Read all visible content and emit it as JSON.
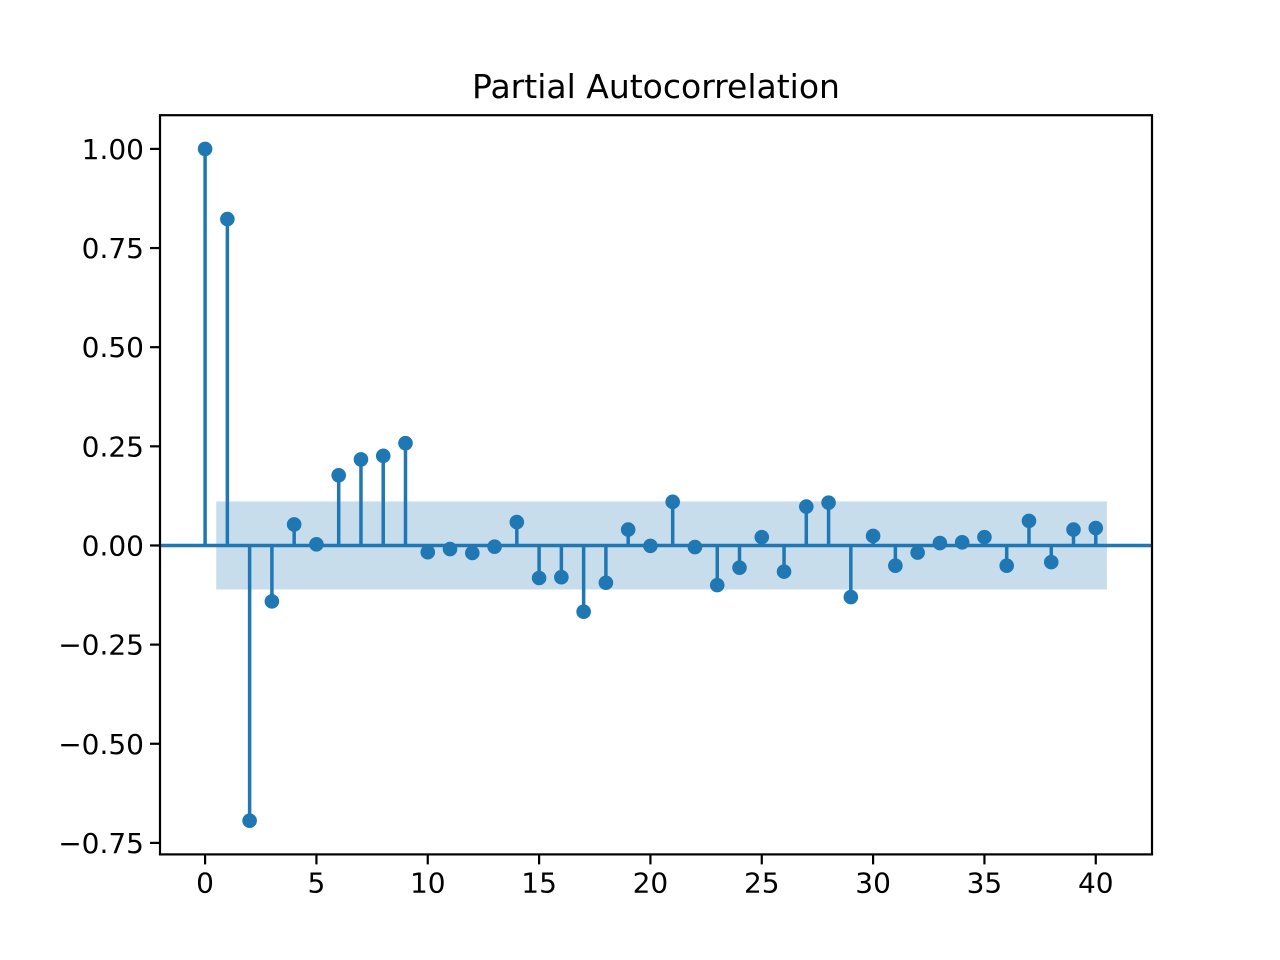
{
  "title": "Partial Autocorrelation",
  "colors": {
    "stem": "#1f77b4",
    "marker": "#1f77b4",
    "band": "#1f77b4",
    "band_opacity": 0.25,
    "zero_line": "#1f77b4",
    "spine": "#000000",
    "background": "#ffffff",
    "text": "#000000"
  },
  "chart_data": {
    "type": "stem",
    "title": "Partial Autocorrelation",
    "xlabel": "",
    "ylabel": "",
    "grid": false,
    "legend": null,
    "x": [
      0,
      1,
      2,
      3,
      4,
      5,
      6,
      7,
      8,
      9,
      10,
      11,
      12,
      13,
      14,
      15,
      16,
      17,
      18,
      19,
      20,
      21,
      22,
      23,
      24,
      25,
      26,
      27,
      28,
      29,
      30,
      31,
      32,
      33,
      34,
      35,
      36,
      37,
      38,
      39,
      40
    ],
    "values": [
      1.0,
      0.823,
      -0.694,
      -0.141,
      0.053,
      0.003,
      0.177,
      0.217,
      0.226,
      0.258,
      -0.017,
      -0.009,
      -0.019,
      -0.003,
      0.059,
      -0.082,
      -0.08,
      -0.167,
      -0.094,
      0.04,
      -0.001,
      0.11,
      -0.004,
      -0.1,
      -0.056,
      0.021,
      -0.066,
      0.098,
      0.108,
      -0.13,
      0.024,
      -0.051,
      -0.018,
      0.006,
      0.008,
      0.021,
      -0.051,
      0.062,
      -0.042,
      0.04,
      0.044
    ],
    "confidence_band": {
      "lower": -0.111,
      "upper": 0.111,
      "x_start": 0.5,
      "x_end": 40.5
    },
    "xticks": [
      0,
      5,
      10,
      15,
      20,
      25,
      30,
      35,
      40
    ],
    "xtick_labels": [
      "0",
      "5",
      "10",
      "15",
      "20",
      "25",
      "30",
      "35",
      "40"
    ],
    "yticks": [
      1.0,
      0.75,
      0.5,
      0.25,
      0.0,
      -0.25,
      -0.5,
      -0.75
    ],
    "ytick_labels": [
      "1.00",
      "0.75",
      "0.50",
      "0.25",
      "0.00",
      "−0.25",
      "−0.50",
      "−0.75"
    ],
    "xlim": [
      -2.025,
      42.525
    ],
    "ylim": [
      -0.779,
      1.085
    ]
  }
}
